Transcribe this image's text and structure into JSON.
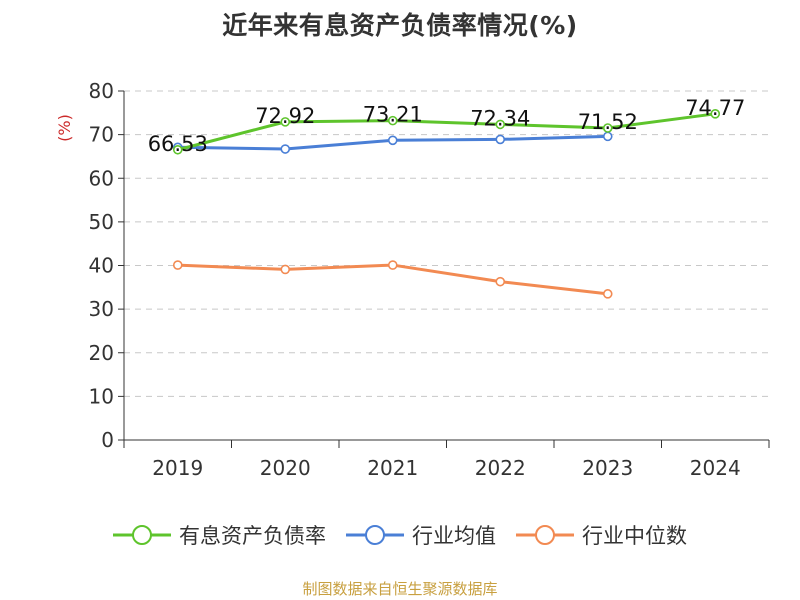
{
  "chart_data": {
    "type": "line",
    "title": "近年来有息资产负债率情况(%)",
    "ylabel": "(%)",
    "categories": [
      "2019",
      "2020",
      "2021",
      "2022",
      "2023",
      "2024"
    ],
    "ylim": [
      0,
      80
    ],
    "yticks": [
      0,
      10,
      20,
      30,
      40,
      50,
      60,
      70,
      80
    ],
    "grid": true,
    "legend_position": "bottom",
    "series": [
      {
        "name": "有息资产负债率",
        "color": "#5ec42c",
        "values": [
          66.53,
          72.92,
          73.21,
          72.34,
          71.52,
          74.77
        ],
        "labels": [
          "66.53",
          "72.92",
          "73.21",
          "72.34",
          "71.52",
          "74.77"
        ]
      },
      {
        "name": "行业均值",
        "color": "#4a7fd6",
        "values": [
          67.1,
          66.7,
          68.7,
          68.9,
          69.6,
          null
        ],
        "labels": []
      },
      {
        "name": "行业中位数",
        "color": "#f28a52",
        "values": [
          40.1,
          39.1,
          40.1,
          36.3,
          33.5,
          null
        ],
        "labels": []
      }
    ]
  },
  "source_note": "制图数据来自恒生聚源数据库"
}
